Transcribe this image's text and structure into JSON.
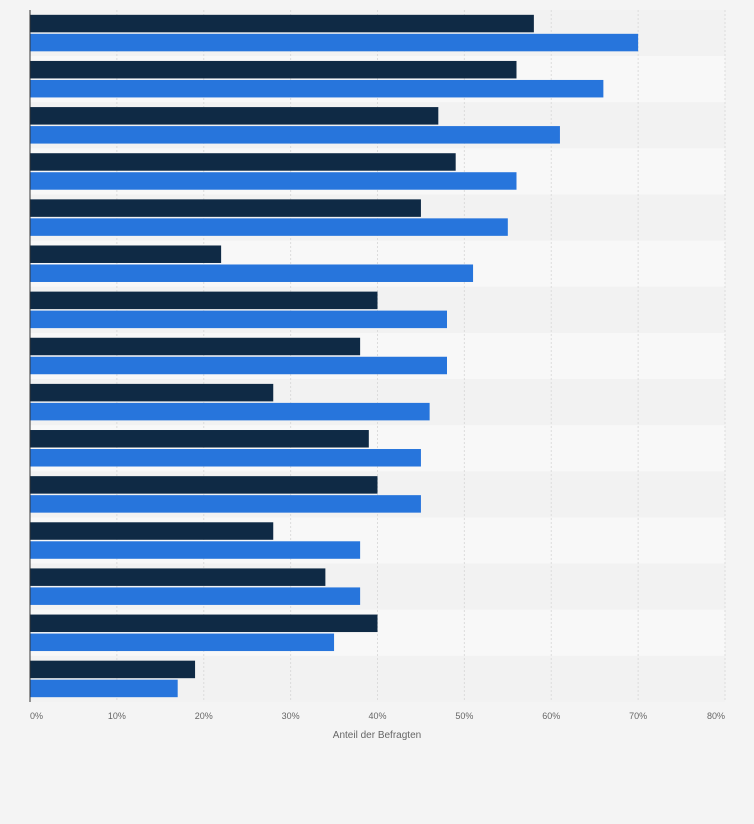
{
  "chart_data": {
    "type": "bar",
    "orientation": "horizontal",
    "categories": [
      "",
      "",
      "",
      "",
      "",
      "",
      "",
      "",
      "",
      "",
      "",
      "",
      "",
      "",
      ""
    ],
    "series": [
      {
        "name": "",
        "color": "#0f2a45",
        "values": [
          58,
          56,
          47,
          49,
          45,
          22,
          40,
          38,
          28,
          39,
          40,
          28,
          34,
          40,
          19
        ]
      },
      {
        "name": "",
        "color": "#2775dc",
        "values": [
          70,
          66,
          61,
          56,
          55,
          51,
          48,
          48,
          46,
          45,
          45,
          38,
          38,
          35,
          17
        ]
      }
    ],
    "xlim": [
      0,
      80
    ],
    "xticks": [
      0,
      10,
      20,
      30,
      40,
      50,
      60,
      70,
      80
    ],
    "xtick_labels": [
      "0%",
      "10%",
      "20%",
      "30%",
      "40%",
      "50%",
      "60%",
      "70%",
      "80%"
    ],
    "xlabel": "Anteil der Befragten",
    "ylabel": "",
    "title": "",
    "grid": true,
    "legend": "none"
  }
}
